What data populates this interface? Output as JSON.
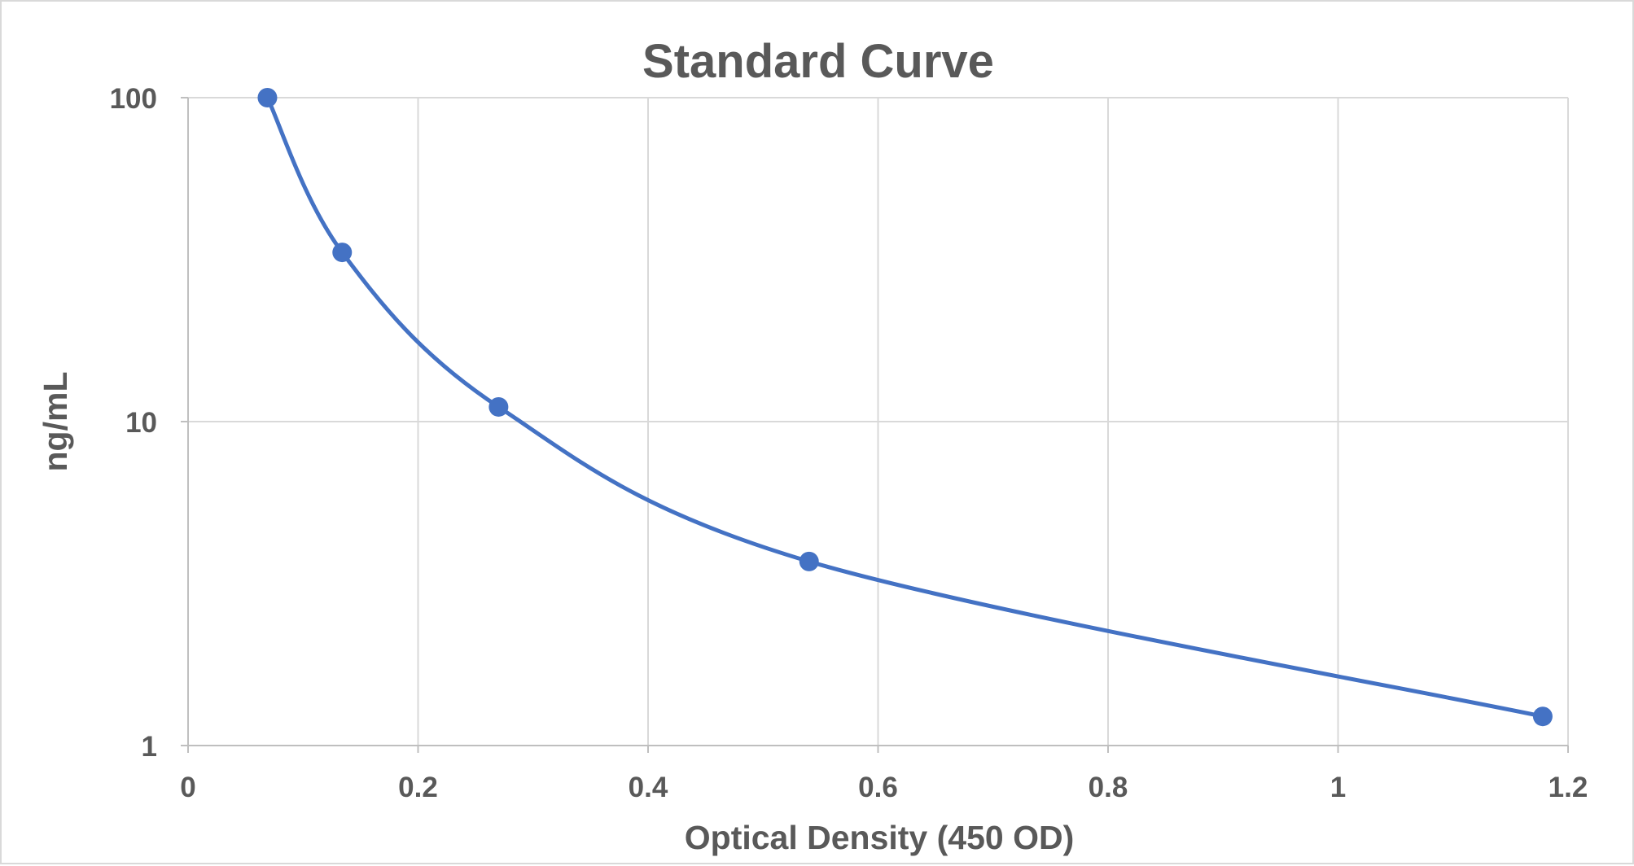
{
  "chart_data": {
    "type": "scatter",
    "title": "Standard Curve",
    "xlabel": "Optical Density (450 OD)",
    "ylabel": "ng/mL",
    "xlim": [
      0,
      1.2
    ],
    "ylim": [
      1,
      100
    ],
    "yscale": "log",
    "grid": true,
    "legend": "none",
    "smooth_line": true,
    "x_ticks": [
      "0",
      "0.2",
      "0.4",
      "0.6",
      "0.8",
      "1",
      "1.2"
    ],
    "y_ticks": [
      "1",
      "10",
      "100"
    ],
    "series": [
      {
        "color": "#4472c4",
        "x": [
          0.069,
          0.134,
          0.27,
          0.54,
          1.178
        ],
        "y": [
          100,
          33.3,
          11.1,
          3.7,
          1.23
        ]
      }
    ]
  }
}
